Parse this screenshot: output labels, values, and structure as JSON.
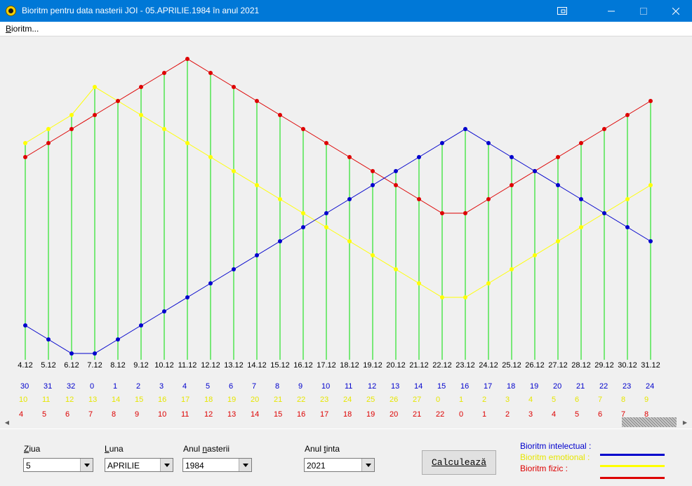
{
  "window": {
    "title": "Bioritm  pentru data nasterii  JOI - 05.APRILIE.1984 în anul 2021"
  },
  "menu": {
    "bioritm": "Bioritm..."
  },
  "chart_data": {
    "type": "line",
    "x_labels": [
      "4.12",
      "5.12",
      "6.12",
      "7.12",
      "8.12",
      "9.12",
      "10.12",
      "11.12",
      "12.12",
      "13.12",
      "14.12",
      "15.12",
      "16.12",
      "17.12",
      "18.12",
      "19.12",
      "20.12",
      "21.12",
      "22.12",
      "23.12",
      "24.12",
      "25.12",
      "26.12",
      "27.12",
      "28.12",
      "29.12",
      "30.12",
      "31.12"
    ],
    "series": [
      {
        "name": "Bioritm intelectual",
        "color": "#0000cc",
        "values": [
          3,
          2,
          1,
          1,
          2,
          3,
          4,
          5,
          6,
          7,
          8,
          9,
          10,
          11,
          12,
          13,
          14,
          15,
          16,
          17,
          16,
          15,
          14,
          13,
          12,
          11,
          10,
          9
        ],
        "day_numbers": [
          "30",
          "31",
          "32",
          "0",
          "1",
          "2",
          "3",
          "4",
          "5",
          "6",
          "7",
          "8",
          "9",
          "10",
          "11",
          "12",
          "13",
          "14",
          "15",
          "16",
          "17",
          "18",
          "19",
          "20",
          "21",
          "22",
          "23",
          "24"
        ]
      },
      {
        "name": "Bioritm emotional",
        "color": "#ffff00",
        "values": [
          16,
          17,
          18,
          20,
          19,
          18,
          17,
          16,
          15,
          14,
          13,
          12,
          11,
          10,
          9,
          8,
          7,
          6,
          5,
          5,
          6,
          7,
          8,
          9,
          10,
          11,
          12,
          13
        ],
        "day_numbers": [
          "10",
          "11",
          "12",
          "13",
          "14",
          "15",
          "16",
          "17",
          "18",
          "19",
          "20",
          "21",
          "22",
          "23",
          "24",
          "25",
          "26",
          "27",
          "0",
          "1",
          "2",
          "3",
          "4",
          "5",
          "6",
          "7",
          "8",
          "9"
        ]
      },
      {
        "name": "Bioritm fizic",
        "color": "#dd0000",
        "values": [
          15,
          16,
          17,
          18,
          19,
          20,
          21,
          22,
          21,
          20,
          19,
          18,
          17,
          16,
          15,
          14,
          13,
          12,
          11,
          11,
          12,
          13,
          14,
          15,
          16,
          17,
          18,
          19
        ],
        "day_numbers": [
          "4",
          "5",
          "6",
          "7",
          "8",
          "9",
          "10",
          "11",
          "12",
          "13",
          "14",
          "15",
          "16",
          "17",
          "18",
          "19",
          "20",
          "21",
          "22",
          "0",
          "1",
          "2",
          "3",
          "4",
          "5",
          "6",
          "7",
          "8"
        ]
      }
    ],
    "gridlines_color": "#00e000"
  },
  "form": {
    "ziua": {
      "label": "Ziua",
      "value": "5"
    },
    "luna": {
      "label": "Luna",
      "value": "APRILIE"
    },
    "anul_nasterii": {
      "label": "Anul nasterii",
      "value": "1984"
    },
    "anul_tinta": {
      "label": "Anul tinta",
      "value": "2021"
    },
    "calc_button": "Calculează"
  },
  "legend": [
    {
      "label": "Bioritm intelectual :",
      "color": "#0000cc"
    },
    {
      "label": "Bioritm emotional :",
      "color": "#ffff00"
    },
    {
      "label": "Bioritm fizic :",
      "color": "#dd0000"
    }
  ]
}
